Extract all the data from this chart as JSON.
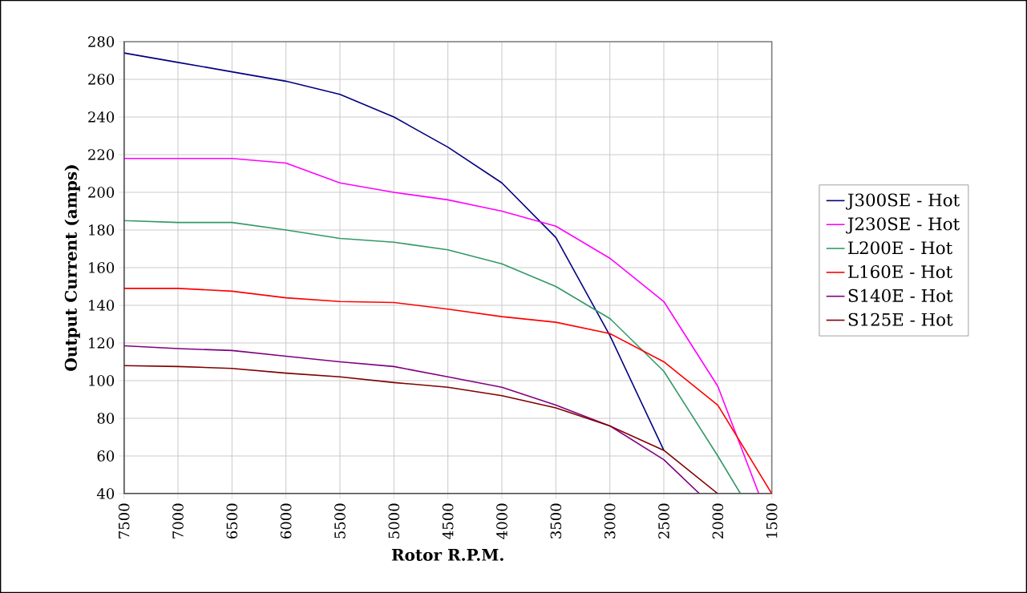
{
  "chart_data": {
    "type": "line",
    "xlabel": "Rotor R.P.M.",
    "ylabel": "Output Current (amps)",
    "xlim": [
      7500,
      1500
    ],
    "ylim": [
      40,
      280
    ],
    "xticks": [
      7500,
      7000,
      6500,
      6000,
      5500,
      5000,
      4500,
      4000,
      3500,
      3000,
      2500,
      2000,
      1500
    ],
    "yticks": [
      40,
      60,
      80,
      100,
      120,
      140,
      160,
      180,
      200,
      220,
      240,
      260,
      280
    ],
    "grid": true,
    "legend": "right",
    "marker": "none",
    "line_style": "solid",
    "series": [
      {
        "name": "J300SE - Hot",
        "color": "#000080",
        "x": [
          7500,
          7000,
          6500,
          6000,
          5500,
          5000,
          4500,
          4000,
          3500,
          3000,
          2500
        ],
        "values": [
          274,
          269,
          264,
          259,
          252,
          240,
          224,
          205,
          176,
          124,
          63
        ]
      },
      {
        "name": "J230SE - Hot",
        "color": "#ff00ff",
        "x": [
          7500,
          7000,
          6500,
          6000,
          5500,
          5000,
          4500,
          4000,
          3500,
          3000,
          2500,
          2000,
          1620
        ],
        "values": [
          218,
          218,
          218,
          215.5,
          205,
          200,
          196,
          190,
          182,
          165,
          142,
          97,
          40
        ]
      },
      {
        "name": "L200E - Hot",
        "color": "#339966",
        "x": [
          7500,
          7000,
          6500,
          6000,
          5500,
          5000,
          4500,
          4000,
          3500,
          3000,
          2500,
          2000,
          1790
        ],
        "values": [
          185,
          184,
          184,
          180,
          175.5,
          173.5,
          169.5,
          162,
          150,
          133,
          105,
          60,
          40
        ]
      },
      {
        "name": "L160E - Hot",
        "color": "#ff0000",
        "x": [
          7500,
          7000,
          6500,
          6000,
          5500,
          5000,
          4500,
          4000,
          3500,
          3000,
          2500,
          2000,
          1500
        ],
        "values": [
          149,
          149,
          147.5,
          144,
          142,
          141.5,
          138,
          134,
          131,
          125,
          110,
          87,
          40
        ]
      },
      {
        "name": "S140E - Hot",
        "color": "#800080",
        "x": [
          7500,
          7000,
          6500,
          6000,
          5500,
          5000,
          4500,
          4000,
          3500,
          3000,
          2500,
          2170
        ],
        "values": [
          118.5,
          117,
          116,
          113,
          110,
          107.5,
          102,
          96.5,
          87,
          76,
          58,
          40
        ]
      },
      {
        "name": "S125E - Hot",
        "color": "#800000",
        "x": [
          7500,
          7000,
          6500,
          6000,
          5500,
          5000,
          4500,
          4000,
          3500,
          3000,
          2500,
          2000
        ],
        "values": [
          108,
          107.5,
          106.5,
          104,
          102,
          99,
          96.5,
          92,
          85.5,
          76,
          63,
          40
        ]
      }
    ]
  }
}
